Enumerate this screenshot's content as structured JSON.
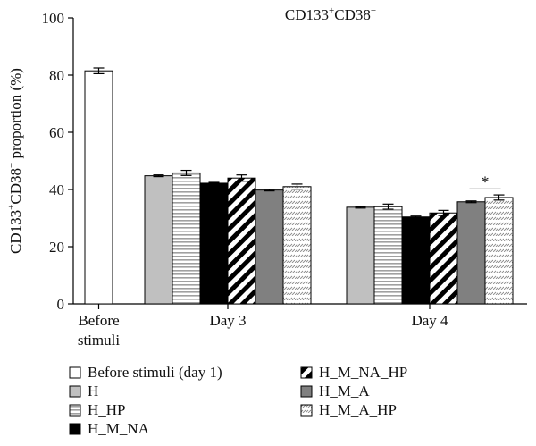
{
  "chart_data": {
    "type": "bar",
    "title_main": "CD133",
    "title_sup1": "+",
    "title_mid": "CD38",
    "title_sup2": "−",
    "ylabel_parts": [
      "CD133",
      "+",
      "CD38",
      "−",
      " proportion (%)"
    ],
    "ylim": [
      0,
      100
    ],
    "yticks": [
      0,
      20,
      40,
      60,
      80,
      100
    ],
    "groups": [
      {
        "label_lines": [
          "Before",
          "stimuli"
        ],
        "bars": [
          {
            "series": 0,
            "value": 81.5,
            "err": 1.0
          }
        ]
      },
      {
        "label_lines": [
          "Day 3"
        ],
        "bars": [
          {
            "series": 1,
            "value": 44.8,
            "err": 0.3
          },
          {
            "series": 2,
            "value": 45.8,
            "err": 0.9
          },
          {
            "series": 3,
            "value": 42.2,
            "err": 0.3
          },
          {
            "series": 4,
            "value": 44.0,
            "err": 1.1
          },
          {
            "series": 5,
            "value": 39.8,
            "err": 0.3
          },
          {
            "series": 6,
            "value": 41.0,
            "err": 0.9
          }
        ]
      },
      {
        "label_lines": [
          "Day 4"
        ],
        "bars": [
          {
            "series": 1,
            "value": 33.8,
            "err": 0.3
          },
          {
            "series": 2,
            "value": 34.0,
            "err": 0.9
          },
          {
            "series": 3,
            "value": 30.4,
            "err": 0.3
          },
          {
            "series": 4,
            "value": 31.8,
            "err": 0.9
          },
          {
            "series": 5,
            "value": 35.7,
            "err": 0.3
          },
          {
            "series": 6,
            "value": 37.2,
            "err": 0.9
          }
        ]
      }
    ],
    "series": [
      {
        "name": "Before stimuli (day 1)",
        "pattern": "white"
      },
      {
        "name": "H",
        "pattern": "lightgray"
      },
      {
        "name": "H_HP",
        "pattern": "hstripes"
      },
      {
        "name": "H_M_NA",
        "pattern": "black"
      },
      {
        "name": "H_M_NA_HP",
        "pattern": "diagonal"
      },
      {
        "name": "H_M_A",
        "pattern": "darkgray"
      },
      {
        "name": "H_M_A_HP",
        "pattern": "dots"
      }
    ],
    "annotations": [
      {
        "text": "*",
        "group": 2,
        "from_series": 5,
        "to_series": 6,
        "y": 40.2
      }
    ],
    "legend_position": "bottom"
  }
}
